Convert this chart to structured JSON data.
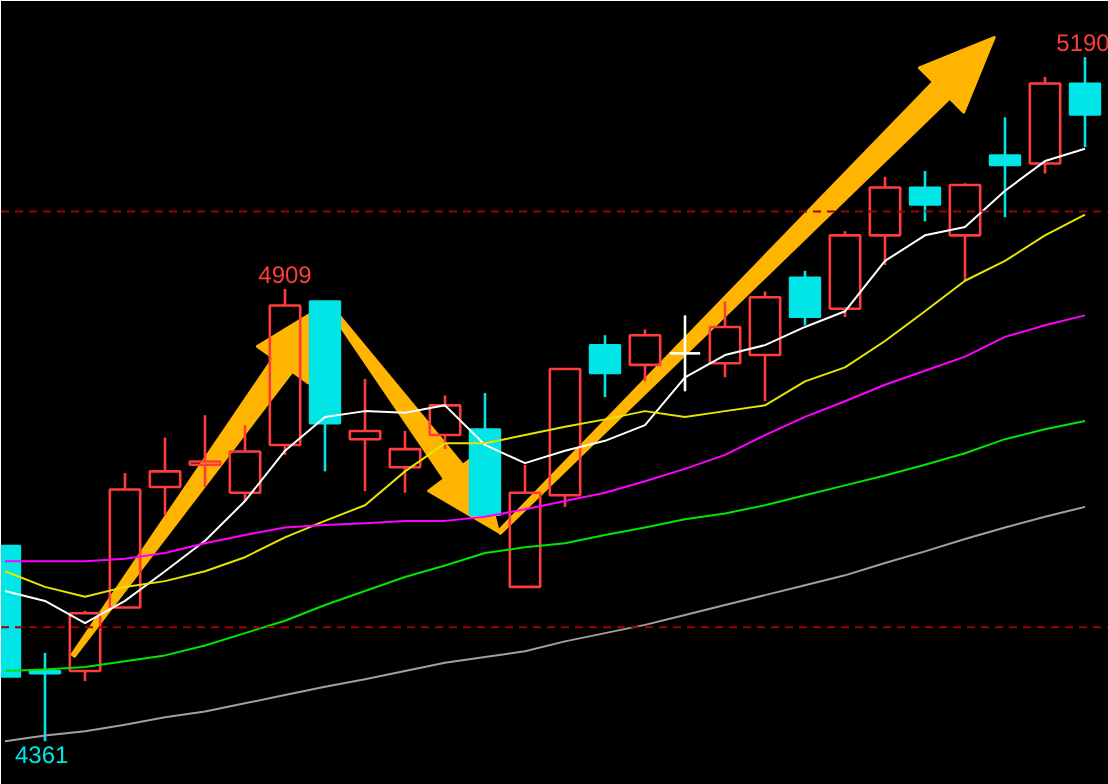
{
  "chart_data": {
    "type": "candlestick",
    "tick_labels": false,
    "grid": false,
    "categories": [
      null,
      null,
      null,
      null,
      null,
      null,
      null,
      null,
      null,
      null,
      null,
      null,
      null,
      null,
      null,
      null,
      null,
      null,
      null,
      null,
      null,
      null,
      null,
      null,
      null,
      null,
      null,
      null
    ],
    "ohlc": [
      [
        4598,
        4598,
        4439,
        4439
      ],
      [
        4446,
        4468,
        4361,
        4443
      ],
      [
        4446,
        4519,
        4434,
        4516
      ],
      [
        4523,
        4686,
        4523,
        4666
      ],
      [
        4669,
        4729,
        4635,
        4688
      ],
      [
        4696,
        4756,
        4669,
        4700
      ],
      [
        4662,
        4744,
        4652,
        4712
      ],
      [
        4720,
        4909,
        4708,
        4889
      ],
      [
        4894,
        4894,
        4688,
        4746
      ],
      [
        4727,
        4800,
        4664,
        4737
      ],
      [
        4693,
        4737,
        4662,
        4715
      ],
      [
        4732,
        4780,
        4715,
        4768
      ],
      [
        4739,
        4783,
        4632,
        4635
      ],
      [
        4548,
        4696,
        4548,
        4662
      ],
      [
        4659,
        4812,
        4645,
        4812
      ],
      [
        4841,
        4853,
        4778,
        4807
      ],
      [
        4817,
        4860,
        4797,
        4853
      ],
      [
        4831,
        4877,
        4785,
        4831
      ],
      [
        4819,
        4894,
        4802,
        4863
      ],
      [
        4829,
        4906,
        4773,
        4899
      ],
      [
        4923,
        4931,
        4865,
        4875
      ],
      [
        4885,
        4979,
        4875,
        4974
      ],
      [
        4974,
        5045,
        4938,
        5032
      ],
      [
        5032,
        5052,
        4991,
        5011
      ],
      [
        4974,
        5037,
        4919,
        5035
      ],
      [
        5071,
        5117,
        4996,
        5059
      ],
      [
        5061,
        5166,
        5049,
        5158
      ],
      [
        5158,
        5190,
        5081,
        5120
      ]
    ],
    "colors": [
      "#00e5e5",
      "#00e5e5",
      "#ff3c3c",
      "#ff3c3c",
      "#ff3c3c",
      "#ff3c3c",
      "#ff3c3c",
      "#ff3c3c",
      "#00e5e5",
      "#ff3c3c",
      "#ff3c3c",
      "#ff3c3c",
      "#00e5e5",
      "#ff3c3c",
      "#ff3c3c",
      "#00e5e5",
      "#ff3c3c",
      "#ffffff",
      "#ff3c3c",
      "#ff3c3c",
      "#00e5e5",
      "#ff3c3c",
      "#ff3c3c",
      "#00e5e5",
      "#ff3c3c",
      "#00e5e5",
      "#ff3c3c",
      "#00e5e5"
    ],
    "series": [
      {
        "type": "line",
        "color": "#ffffff",
        "values": [
          4543,
          4531,
          4504,
          4531,
          4567,
          4604,
          4652,
          4713,
          4754,
          4761,
          4759,
          4768,
          4720,
          4698,
          4713,
          4725,
          4744,
          4802,
          4829,
          4841,
          4863,
          4882,
          4943,
          4974,
          4984,
          5028,
          5064,
          5079
        ]
      },
      {
        "type": "line",
        "color": "#e6e600",
        "values": [
          4567,
          4548,
          4536,
          4548,
          4555,
          4567,
          4584,
          4608,
          4628,
          4647,
          4688,
          4722,
          4722,
          4732,
          4742,
          4751,
          4761,
          4754,
          4761,
          4768,
          4797,
          4814,
          4846,
          4882,
          4919,
          4943,
          4974,
          4999
        ]
      },
      {
        "type": "line",
        "color": "#ff00ff",
        "values": [
          4579,
          4579,
          4579,
          4582,
          4589,
          4601,
          4611,
          4620,
          4623,
          4625,
          4628,
          4628,
          4633,
          4642,
          4652,
          4662,
          4676,
          4691,
          4708,
          4732,
          4754,
          4773,
          4793,
          4810,
          4827,
          4851,
          4865,
          4877
        ]
      },
      {
        "type": "line",
        "color": "#00e600",
        "values": [
          4446,
          4448,
          4451,
          4458,
          4465,
          4477,
          4492,
          4507,
          4526,
          4543,
          4560,
          4574,
          4589,
          4596,
          4601,
          4611,
          4620,
          4630,
          4637,
          4647,
          4659,
          4671,
          4683,
          4696,
          4710,
          4727,
          4739,
          4749
        ]
      },
      {
        "type": "line",
        "color": "#a0a0a0",
        "values": [
          4361,
          4368,
          4373,
          4381,
          4390,
          4397,
          4407,
          4417,
          4427,
          4436,
          4446,
          4456,
          4463,
          4470,
          4482,
          4492,
          4502,
          4514,
          4526,
          4538,
          4550,
          4562,
          4577,
          4591,
          4606,
          4620,
          4633,
          4645
        ]
      }
    ],
    "ref_lines": [
      {
        "axis": "y",
        "value": 5003,
        "color": "#a00000",
        "line_style": "dashed"
      },
      {
        "axis": "y",
        "value": 4499,
        "color": "#a00000",
        "line_style": "dashed"
      }
    ],
    "annotations": [
      {
        "text": "4909",
        "y": 4909
      },
      {
        "text": "5190",
        "y": 5190
      },
      {
        "text": "4361",
        "y": 4361
      }
    ]
  }
}
